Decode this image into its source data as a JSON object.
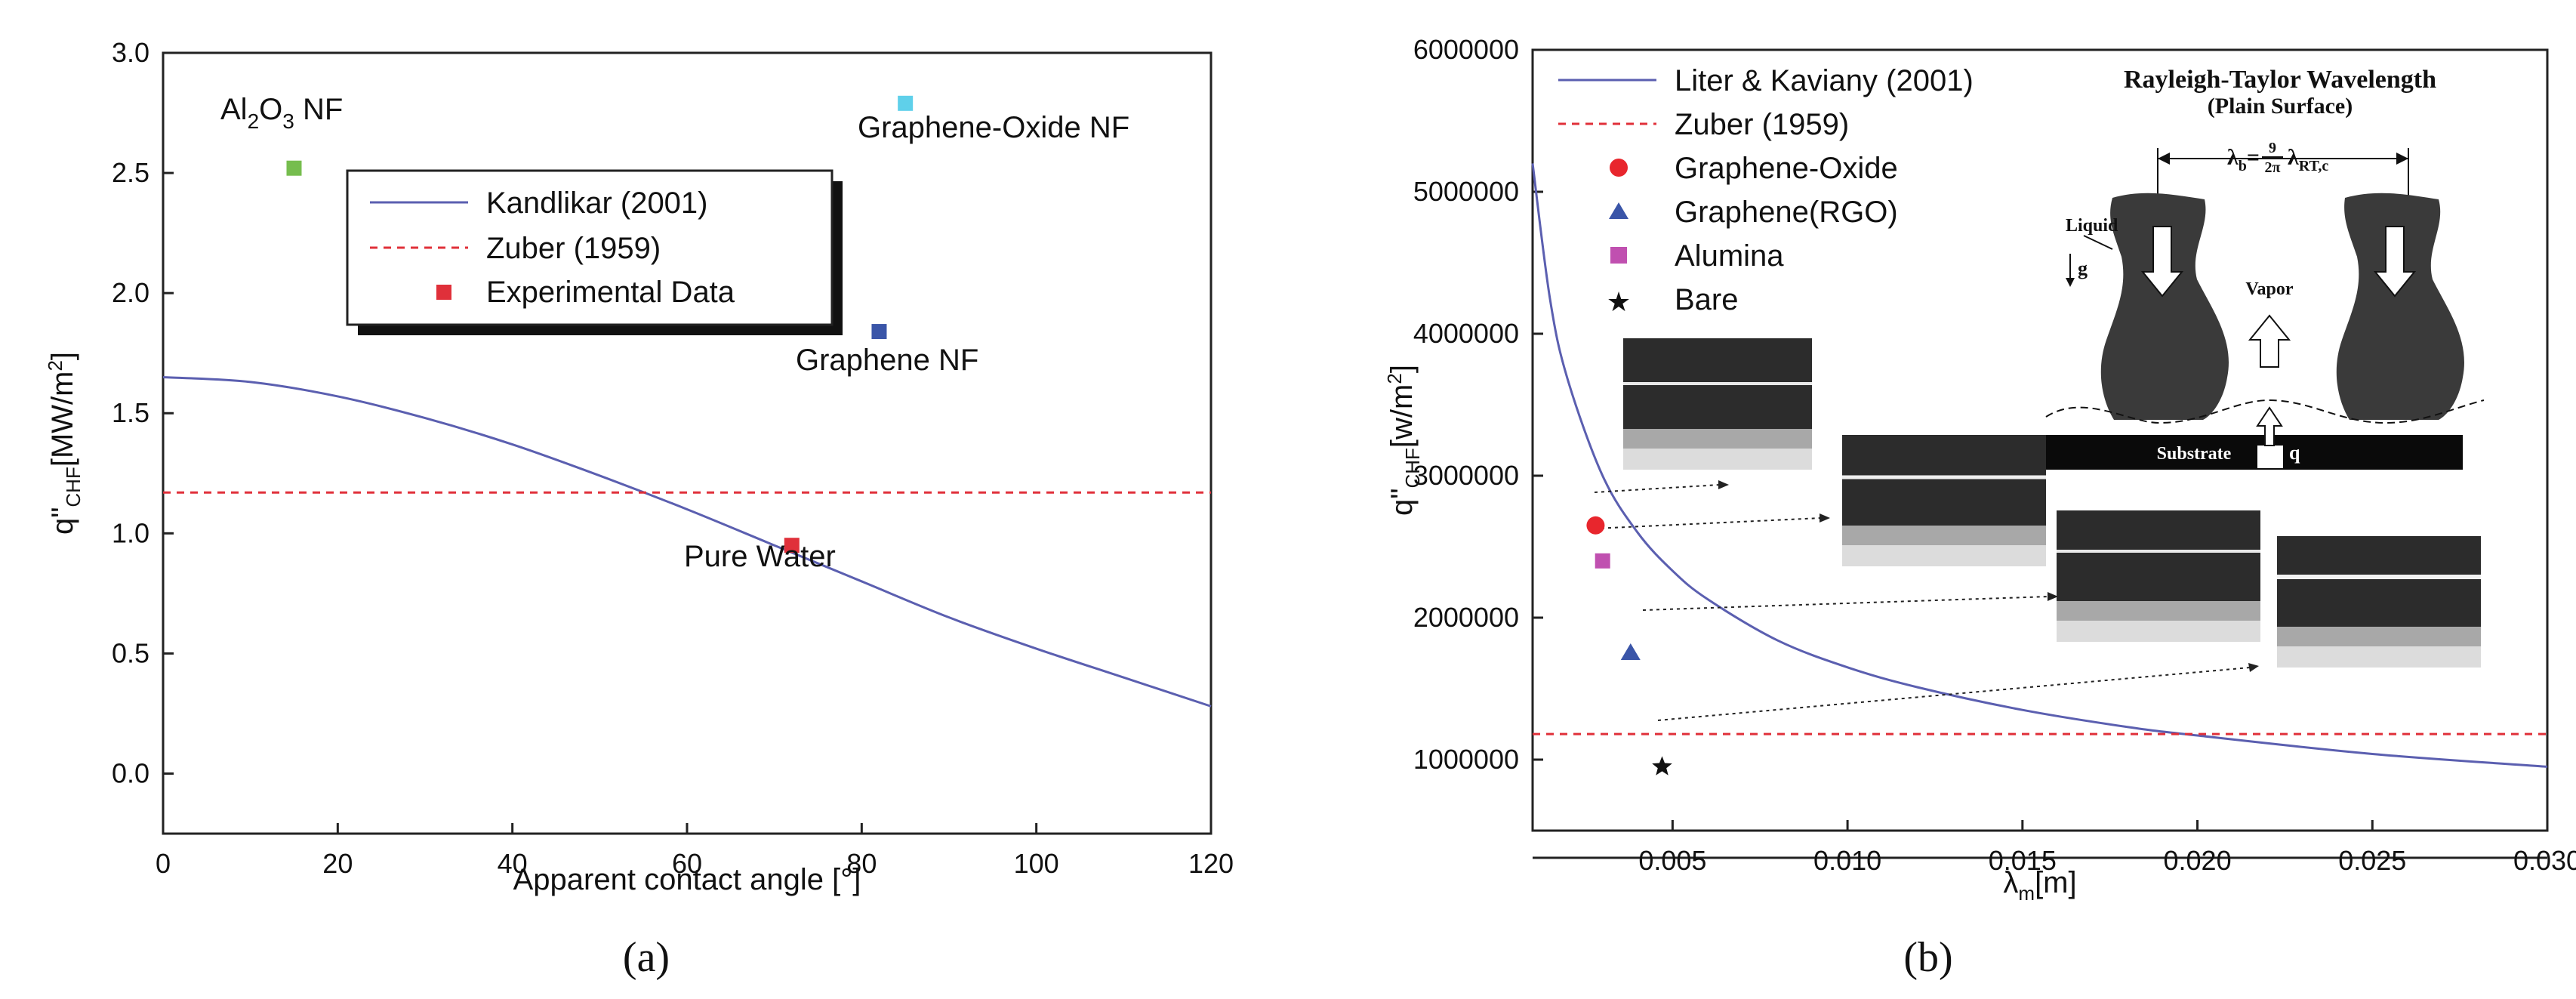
{
  "chart_data": [
    {
      "type": "line",
      "panel_label": "(a)",
      "xlabel": "Apparent contact angle [°]",
      "ylabel": "q\"CHF[MW/m2]",
      "ylabel_main": "q\"",
      "ylabel_sub": "CHF",
      "ylabel_units": "[MW/m",
      "ylabel_sup": "2",
      "ylabel_close": "]",
      "xlim": [
        0,
        120
      ],
      "ylim": [
        -0.25,
        3.0
      ],
      "xticks": [
        0,
        20,
        40,
        60,
        80,
        100,
        120
      ],
      "yticks": [
        0.0,
        0.5,
        1.0,
        1.5,
        2.0,
        2.5,
        3.0
      ],
      "xtick_labels": [
        "0",
        "20",
        "40",
        "60",
        "80",
        "100",
        "120"
      ],
      "ytick_labels": [
        "0.0",
        "0.5",
        "1.0",
        "1.5",
        "2.0",
        "2.5",
        "3.0"
      ],
      "grid": false,
      "legend_position": "upper-center",
      "series": [
        {
          "name": "Kandlikar (2001)",
          "kind": "line",
          "color": "#5b5fb0",
          "x": [
            0,
            10,
            20,
            30,
            40,
            50,
            60,
            70,
            80,
            90,
            100,
            110,
            120
          ],
          "y": [
            1.65,
            1.63,
            1.57,
            1.48,
            1.37,
            1.24,
            1.1,
            0.95,
            0.8,
            0.65,
            0.52,
            0.4,
            0.28
          ]
        },
        {
          "name": "Zuber (1959)",
          "kind": "dashed",
          "color": "#e0303a",
          "x": [
            0,
            120
          ],
          "y": [
            1.17,
            1.17
          ]
        },
        {
          "name": "Experimental Data",
          "kind": "scatter",
          "color": "#e0303a",
          "x": [
            72
          ],
          "y": [
            0.95
          ]
        }
      ],
      "extra_points": [
        {
          "x": 15,
          "y": 2.52,
          "color": "#76bd4e"
        },
        {
          "x": 85,
          "y": 2.79,
          "color": "#5fd0ea"
        },
        {
          "x": 82,
          "y": 1.84,
          "color": "#3a55a8"
        }
      ],
      "annotations": [
        {
          "text_main": "Al",
          "text_sub": "2",
          "text_rest": "O",
          "text_sub2": "3",
          "text_end": " NF"
        },
        {
          "text": "Graphene-Oxide NF"
        },
        {
          "text": "Graphene NF"
        },
        {
          "text": "Pure Water"
        }
      ]
    },
    {
      "type": "line",
      "panel_label": "(b)",
      "xlabel_main": "λ",
      "xlabel_sub": "m",
      "xlabel_rest": "[m]",
      "ylabel_main": "q\"",
      "ylabel_sub": "CHF",
      "ylabel_units": "[w/m",
      "ylabel_sup": "2",
      "ylabel_close": "]",
      "xlim": [
        0.001,
        0.03
      ],
      "ylim": [
        500000,
        6000000
      ],
      "xticks": [
        0.005,
        0.01,
        0.015,
        0.02,
        0.025,
        0.03
      ],
      "yticks": [
        1000000,
        2000000,
        3000000,
        4000000,
        5000000,
        6000000
      ],
      "xtick_labels": [
        "0.005",
        "0.010",
        "0.015",
        "0.020",
        "0.025",
        "0.030"
      ],
      "ytick_labels": [
        "1000000",
        "2000000",
        "3000000",
        "4000000",
        "5000000",
        "6000000"
      ],
      "grid": false,
      "legend_position": "upper-left",
      "series": [
        {
          "name": "Liter & Kaviany (2001)",
          "kind": "line",
          "color": "#5b5fb0",
          "x": [
            0.001,
            0.0015,
            0.002,
            0.003,
            0.004,
            0.005,
            0.006,
            0.008,
            0.01,
            0.012,
            0.015,
            0.018,
            0.02,
            0.025,
            0.03
          ],
          "y": [
            5200000,
            4240000,
            3680000,
            3000000,
            2600000,
            2330000,
            2130000,
            1840000,
            1650000,
            1510000,
            1350000,
            1230000,
            1170000,
            1040000,
            950000
          ]
        },
        {
          "name": "Zuber (1959)",
          "kind": "dashed",
          "color": "#e0303a",
          "x": [
            0.001,
            0.03
          ],
          "y": [
            1180000,
            1180000
          ]
        },
        {
          "name": "Graphene-Oxide",
          "kind": "scatter",
          "marker": "circle",
          "color": "#e8262d",
          "x": [
            0.0028
          ],
          "y": [
            2650000
          ]
        },
        {
          "name": "Graphene(RGO)",
          "kind": "scatter",
          "marker": "triangle",
          "color": "#3a55a8",
          "x": [
            0.0038
          ],
          "y": [
            1750000
          ]
        },
        {
          "name": "Alumina",
          "kind": "scatter",
          "marker": "square",
          "color": "#c050b0",
          "x": [
            0.003
          ],
          "y": [
            2400000
          ]
        },
        {
          "name": "Bare",
          "kind": "scatter",
          "marker": "star",
          "color": "#111111",
          "x": [
            0.0047
          ],
          "y": [
            950000
          ]
        }
      ],
      "inset": {
        "title": "Rayleigh-Taylor Wavelength",
        "subtitle": "(Plain Surface)",
        "formula_main": "λ",
        "formula_sub": "b",
        "formula_eq": "=",
        "formula_num": "9",
        "formula_den": "2π",
        "formula_tail": "λ",
        "formula_tail_sub": "RT,c",
        "label_liquid": "Liquid",
        "label_g": "g",
        "label_vapor": "Vapor",
        "label_substrate": "Substrate",
        "label_q": "q"
      }
    }
  ],
  "colors": {
    "axis": "#222222",
    "curve": "#5b5fb0",
    "dashed": "#e0303a"
  }
}
